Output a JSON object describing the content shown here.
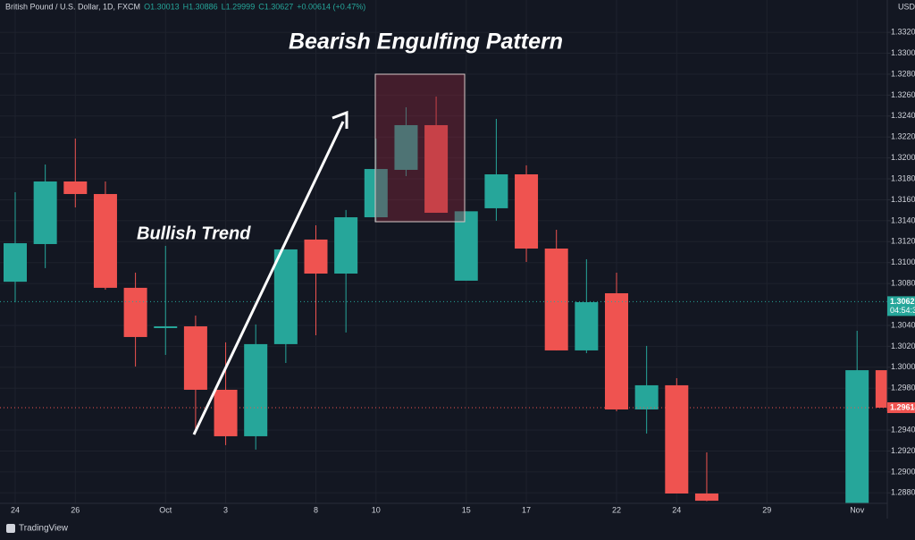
{
  "chart_data": {
    "type": "candlestick",
    "header": [
      "British Pound / U.S. Dollar, 1D, FXCM",
      "O1.30013",
      "H1.30886",
      "L1.29999",
      "C1.30627",
      "+0.00614 (+0.47%)"
    ],
    "currency": "USD",
    "annotations": [
      "Bearish Engulfing Pattern",
      "Bullish Trend"
    ],
    "categories": [
      "24",
      null,
      "26",
      null,
      null,
      "Oct",
      null,
      "3",
      null,
      null,
      "8",
      null,
      "10",
      null,
      null,
      "15",
      null,
      "17",
      null,
      null,
      "22",
      null,
      "24",
      null,
      null,
      "29",
      null,
      null,
      "Nov",
      null
    ],
    "open": [
      1.30817,
      1.31177,
      1.31775,
      1.31655,
      1.30759,
      1.30374,
      1.30391,
      1.29785,
      1.29341,
      1.30221,
      1.3122,
      1.30895,
      1.31433,
      1.31886,
      1.32313,
      1.30827,
      1.31519,
      1.31843,
      1.31134,
      1.30161,
      1.30707,
      1.29597,
      1.29828,
      1.28794,
      null,
      null,
      null,
      null,
      1.286,
      1.29972
    ],
    "high": [
      1.31672,
      1.31937,
      1.32185,
      1.31775,
      1.30904,
      1.3116,
      1.30494,
      1.30238,
      1.30409,
      1.31126,
      1.31356,
      1.31502,
      1.32185,
      1.32484,
      1.32586,
      1.3149,
      1.32373,
      1.31929,
      1.31314,
      1.31032,
      1.30904,
      1.30204,
      1.29896,
      1.29187,
      null,
      null,
      null,
      null,
      1.30348,
      1.29972
    ],
    "low": [
      1.30621,
      1.30947,
      1.31527,
      1.30741,
      1.30007,
      1.30118,
      1.29409,
      1.29256,
      1.29213,
      1.30041,
      1.30306,
      1.30332,
      1.31391,
      1.31826,
      1.31476,
      1.30827,
      1.314,
      1.31006,
      1.30161,
      1.30135,
      1.2958,
      1.29367,
      1.28794,
      1.2872,
      null,
      null,
      null,
      null,
      1.2855,
      1.2958
    ],
    "close": [
      1.31185,
      1.31775,
      1.31655,
      1.30759,
      1.30289,
      1.30391,
      1.29785,
      1.29341,
      1.30221,
      1.31126,
      1.30895,
      1.31433,
      1.31894,
      1.32313,
      1.31476,
      1.3149,
      1.31843,
      1.31134,
      1.30161,
      1.30622,
      1.29597,
      1.29828,
      1.28794,
      1.28725,
      null,
      null,
      null,
      null,
      1.29972,
      1.29614
    ],
    "up_color": "#26a69a",
    "down_color": "#ef5350",
    "ylim": [
      1.287,
      1.335
    ],
    "yticks": [
      {
        "value": 1.332,
        "label": "1.33200"
      },
      {
        "value": 1.33,
        "label": "1.33000"
      },
      {
        "value": 1.328,
        "label": "1.32800"
      },
      {
        "value": 1.326,
        "label": "1.32600"
      },
      {
        "value": 1.324,
        "label": "1.32400"
      },
      {
        "value": 1.322,
        "label": "1.32200"
      },
      {
        "value": 1.32,
        "label": "1.32000"
      },
      {
        "value": 1.318,
        "label": "1.31800"
      },
      {
        "value": 1.316,
        "label": "1.31600"
      },
      {
        "value": 1.314,
        "label": "1.31400"
      },
      {
        "value": 1.312,
        "label": "1.31200"
      },
      {
        "value": 1.31,
        "label": "1.31000"
      },
      {
        "value": 1.308,
        "label": "1.30800"
      },
      {
        "value": 1.304,
        "label": "1.30400"
      },
      {
        "value": 1.302,
        "label": "1.30200"
      },
      {
        "value": 1.3,
        "label": "1.30000"
      },
      {
        "value": 1.298,
        "label": "1.29800"
      },
      {
        "value": 1.294,
        "label": "1.29400"
      },
      {
        "value": 1.292,
        "label": "1.29200"
      },
      {
        "value": 1.29,
        "label": "1.29000"
      },
      {
        "value": 1.288,
        "label": "1.28800"
      }
    ],
    "price_markers": [
      {
        "value": 1.30627,
        "color": "#26a69a",
        "note": "04:54:3"
      },
      {
        "value": 1.29614,
        "color": "#ef5350"
      }
    ],
    "grid": true,
    "brand": "TradingView"
  }
}
